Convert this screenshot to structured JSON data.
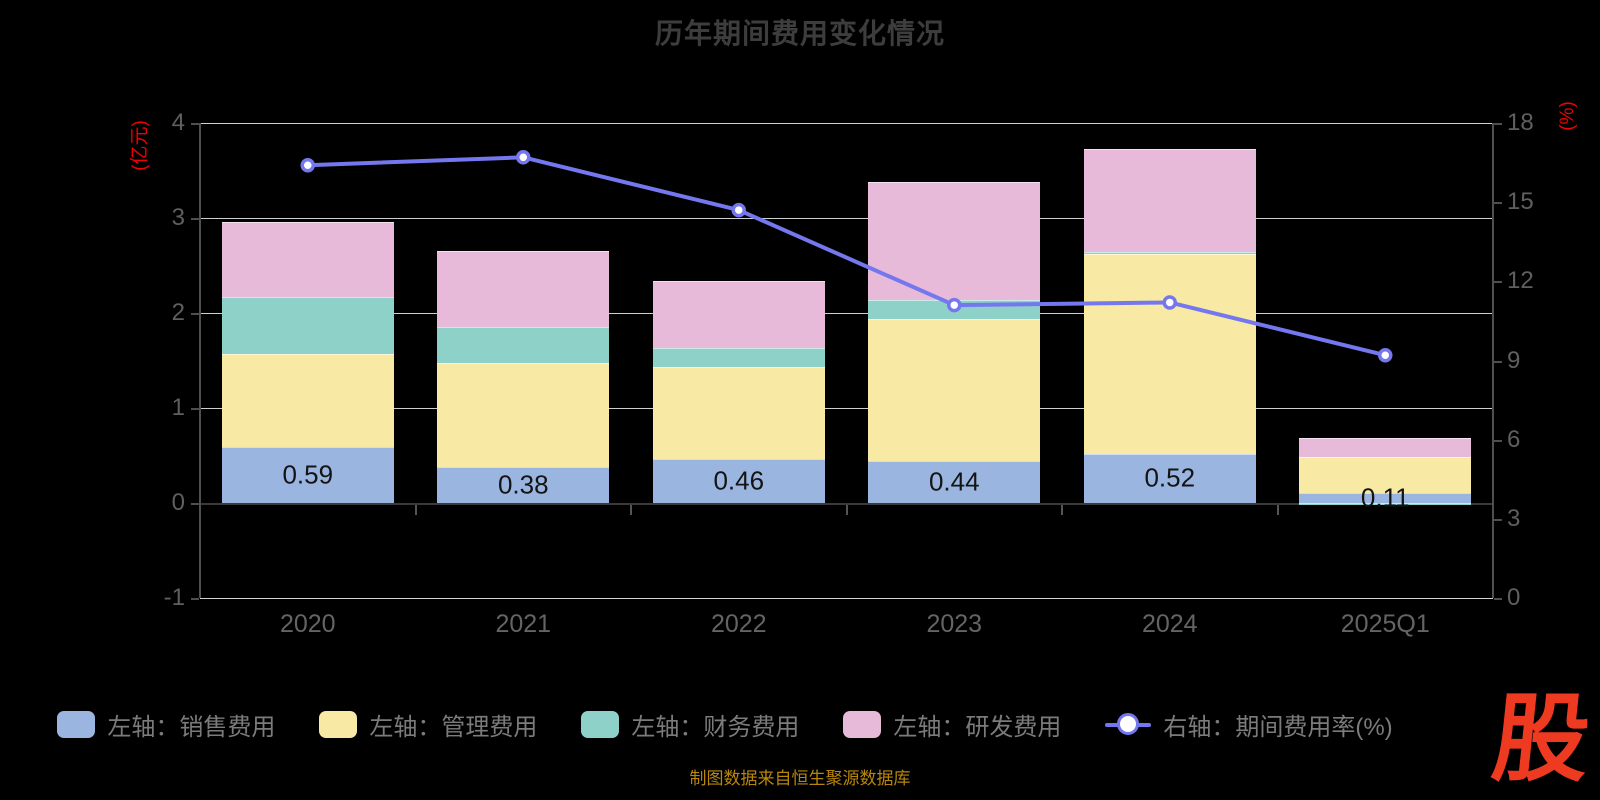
{
  "title": "历年期间费用变化情况",
  "footer": "制图数据来自恒生聚源数据库",
  "logo_text": "股",
  "colors": {
    "background": "#000000",
    "title": "#3d3d3d",
    "axis_name": "#f00000",
    "grid": "#cfcfcf",
    "axis_line": "#4f4f4f",
    "tick_label": "#5f5f5f",
    "bar_label": "#141414",
    "legend_text": "#7b7b7b",
    "footer": "#b8860b",
    "logo": "#ee3a21",
    "line_series": "#7577ee",
    "sales_bar": "#9ab5df",
    "admin_bar": "#f8e9a5",
    "finance_bar": "#8ed1c9",
    "rd_bar": "#e7bad9"
  },
  "chart_data": {
    "type": "bar",
    "subtype": "stacked-bar-with-line",
    "categories": [
      "2020",
      "2021",
      "2022",
      "2023",
      "2024",
      "2025Q1"
    ],
    "series": [
      {
        "name": "左轴：销售费用",
        "type": "bar",
        "axis": "left",
        "color": "#9ab5df",
        "values": [
          0.59,
          0.38,
          0.46,
          0.44,
          0.52,
          0.11
        ]
      },
      {
        "name": "左轴：管理费用",
        "type": "bar",
        "axis": "left",
        "color": "#f8e9a5",
        "values": [
          0.98,
          1.09,
          0.97,
          1.5,
          2.1,
          0.37
        ]
      },
      {
        "name": "左轴：财务费用",
        "type": "bar",
        "axis": "left",
        "color": "#8ed1c9",
        "values": [
          0.6,
          0.38,
          0.2,
          0.2,
          0.02,
          -0.01
        ]
      },
      {
        "name": "左轴：研发费用",
        "type": "bar",
        "axis": "left",
        "color": "#e7bad9",
        "values": [
          0.79,
          0.8,
          0.71,
          1.24,
          1.09,
          0.2
        ]
      },
      {
        "name": "右轴：期间费用率(%)",
        "type": "line",
        "axis": "right",
        "color": "#7577ee",
        "values": [
          16.4,
          16.7,
          14.7,
          11.1,
          11.2,
          9.2
        ]
      }
    ],
    "bar_labels": [
      "0.59",
      "0.38",
      "0.46",
      "0.44",
      "0.52",
      "0.11"
    ],
    "left_axis": {
      "name": "(亿元)",
      "min": -1,
      "max": 4,
      "ticks": [
        4,
        3,
        2,
        1,
        0,
        -1
      ]
    },
    "right_axis": {
      "name": "(%)",
      "min": 0,
      "max": 18,
      "ticks": [
        18,
        15,
        12,
        9,
        6,
        3,
        0
      ]
    },
    "gridline_left_values": [
      4,
      3,
      2,
      1
    ],
    "grid": true,
    "legend_position": "bottom"
  }
}
